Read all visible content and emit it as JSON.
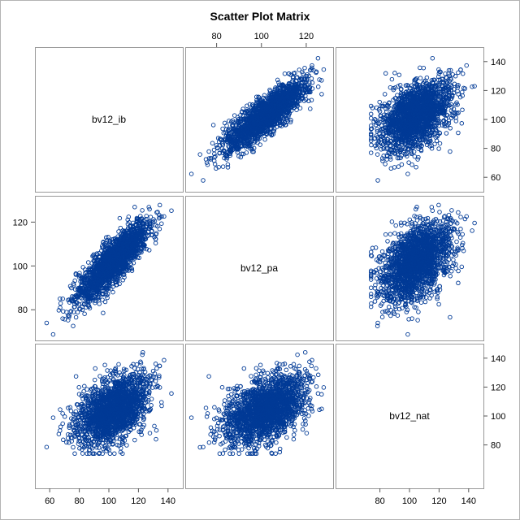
{
  "colors": {
    "background": "#ffffff",
    "marker": "#003a96",
    "panel_border": "#999999",
    "outer_border": "#b3b3b3",
    "axis": "#555555"
  },
  "chart_data": {
    "type": "scatter",
    "matrix": true,
    "title": "Scatter Plot Matrix",
    "variables": [
      "bv12_ib",
      "bv12_pa",
      "bv12_nat"
    ],
    "marker": "open-circle",
    "axis_ranges": {
      "bv12_ib": [
        50,
        150
      ],
      "bv12_pa": [
        66,
        132
      ],
      "bv12_nat": [
        50,
        150
      ]
    },
    "ticks": {
      "bv12_ib": [
        60,
        80,
        100,
        120,
        140
      ],
      "bv12_pa": [
        80,
        100,
        120
      ],
      "bv12_nat": [
        80,
        100,
        120,
        140
      ]
    },
    "tick_label_positions": {
      "top": {
        "column": 1,
        "variable": "bv12_pa",
        "values": [
          80,
          100,
          120
        ]
      },
      "bottom": [
        {
          "column": 0,
          "variable": "bv12_ib",
          "values": [
            60,
            80,
            100,
            120,
            140
          ]
        },
        {
          "column": 2,
          "variable": "bv12_nat",
          "values": [
            80,
            100,
            120,
            140
          ]
        }
      ],
      "left": {
        "row": 1,
        "variable": "bv12_pa",
        "values": [
          80,
          100,
          120
        ]
      },
      "right": [
        {
          "row": 0,
          "variable": "bv12_ib",
          "values": [
            60,
            80,
            100,
            120,
            140
          ]
        },
        {
          "row": 2,
          "variable": "bv12_nat",
          "values": [
            80,
            100,
            120,
            140
          ]
        }
      ]
    },
    "grid": false,
    "legend": "none",
    "distribution_summary": {
      "n_points": 2000,
      "means": {
        "bv12_ib": 103,
        "bv12_pa": 102,
        "bv12_nat": 104
      },
      "std_devs": {
        "bv12_ib": 12,
        "bv12_pa": 9,
        "bv12_nat": 12
      },
      "correlations": {
        "ib_pa": 0.85,
        "ib_nat": 0.45,
        "pa_nat": 0.45
      },
      "range_observed": {
        "bv12_ib": [
          55,
          148
        ],
        "bv12_pa": [
          68,
          131
        ],
        "bv12_nat": [
          74,
          148
        ]
      }
    }
  }
}
